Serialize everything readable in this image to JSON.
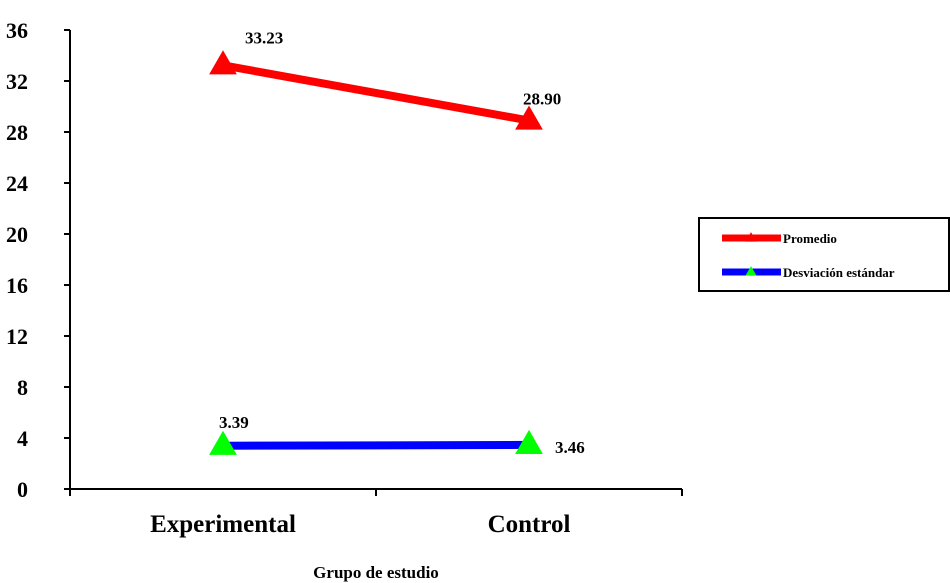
{
  "chart_data": {
    "type": "line",
    "categories": [
      "Experimental",
      "Control"
    ],
    "series": [
      {
        "name": "Promedio",
        "values": [
          33.23,
          28.9
        ],
        "value_labels": [
          "33.23",
          "28.90"
        ],
        "color": "#ff0000",
        "marker_color": "#ff0000"
      },
      {
        "name": "Desviación estándar",
        "values": [
          3.39,
          3.46
        ],
        "value_labels": [
          "3.39",
          "3.46"
        ],
        "color": "#0000ff",
        "marker_color": "#00ff00"
      }
    ],
    "xlabel": "Grupo de estudio",
    "ylabel": "",
    "ylim": [
      0,
      36
    ],
    "yticks": [
      0,
      4,
      8,
      12,
      16,
      20,
      24,
      28,
      32,
      36
    ],
    "grid": false,
    "legend": "right"
  }
}
